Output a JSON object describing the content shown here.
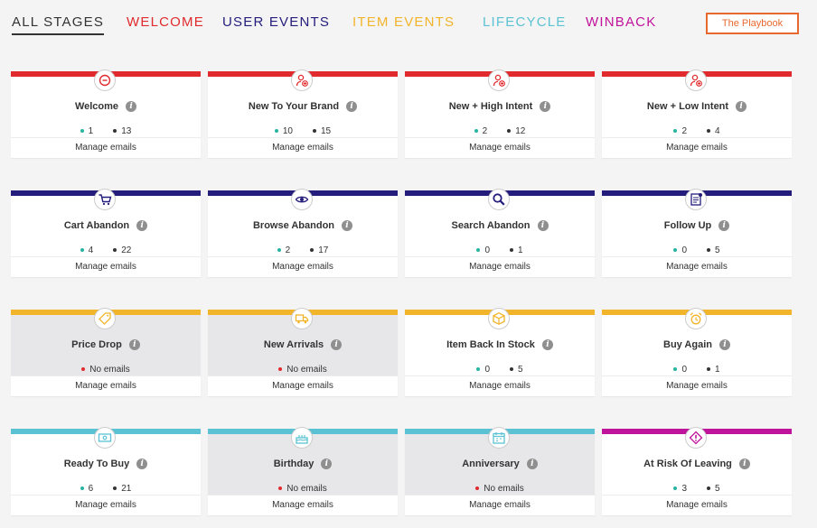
{
  "nav": {
    "tabs": [
      {
        "label": "ALL STAGES",
        "color": "#333333"
      },
      {
        "label": "WELCOME",
        "color": "#e02a2d"
      },
      {
        "label": "USER EVENTS",
        "color": "#241d7c"
      },
      {
        "label": "ITEM EVENTS",
        "color": "#f2b42a"
      },
      {
        "label": "LIFECYCLE",
        "color": "#5bc2d4"
      },
      {
        "label": "WINBACK",
        "color": "#c0139c"
      }
    ],
    "playbook_label": "The Playbook"
  },
  "colors": {
    "welcome": "#e02a2d",
    "user_events": "#241d7c",
    "item_events": "#f2b42a",
    "lifecycle": "#5bc2d4",
    "winback": "#c0139c",
    "active_dot": "#26b5a0",
    "inactive_dot": "#333333",
    "no_emails_dot": "#e02a2d"
  },
  "labels": {
    "manage": "Manage emails",
    "no_emails": "No emails",
    "info": "i"
  },
  "cards": [
    {
      "title": "Welcome",
      "icon": "chat-bubble-icon",
      "stage": "welcome",
      "active": "1",
      "inactive": "13"
    },
    {
      "title": "New To Your Brand",
      "icon": "user-add-icon",
      "stage": "welcome",
      "active": "10",
      "inactive": "15"
    },
    {
      "title": "New + High Intent",
      "icon": "user-add-icon",
      "stage": "welcome",
      "active": "2",
      "inactive": "12"
    },
    {
      "title": "New + Low Intent",
      "icon": "user-add-icon",
      "stage": "welcome",
      "active": "2",
      "inactive": "4"
    },
    {
      "title": "Cart Abandon",
      "icon": "cart-icon",
      "stage": "user_events",
      "active": "4",
      "inactive": "22"
    },
    {
      "title": "Browse Abandon",
      "icon": "eye-icon",
      "stage": "user_events",
      "active": "2",
      "inactive": "17"
    },
    {
      "title": "Search Abandon",
      "icon": "magnifier-icon",
      "stage": "user_events",
      "active": "0",
      "inactive": "1"
    },
    {
      "title": "Follow Up",
      "icon": "document-icon",
      "stage": "user_events",
      "active": "0",
      "inactive": "5"
    },
    {
      "title": "Price Drop",
      "icon": "price-tag-icon",
      "stage": "item_events",
      "empty": true
    },
    {
      "title": "New Arrivals",
      "icon": "delivery-truck-icon",
      "stage": "item_events",
      "empty": true
    },
    {
      "title": "Item Back In Stock",
      "icon": "box-icon",
      "stage": "item_events",
      "active": "0",
      "inactive": "5"
    },
    {
      "title": "Buy Again",
      "icon": "alarm-clock-icon",
      "stage": "item_events",
      "active": "0",
      "inactive": "1"
    },
    {
      "title": "Ready To Buy",
      "icon": "cash-icon",
      "stage": "lifecycle",
      "active": "6",
      "inactive": "21"
    },
    {
      "title": "Birthday",
      "icon": "cake-icon",
      "stage": "lifecycle",
      "empty": true
    },
    {
      "title": "Anniversary",
      "icon": "calendar-icon",
      "stage": "lifecycle",
      "empty": true
    },
    {
      "title": "At Risk Of Leaving",
      "icon": "warning-icon",
      "stage": "winback",
      "active": "3",
      "inactive": "5"
    }
  ]
}
